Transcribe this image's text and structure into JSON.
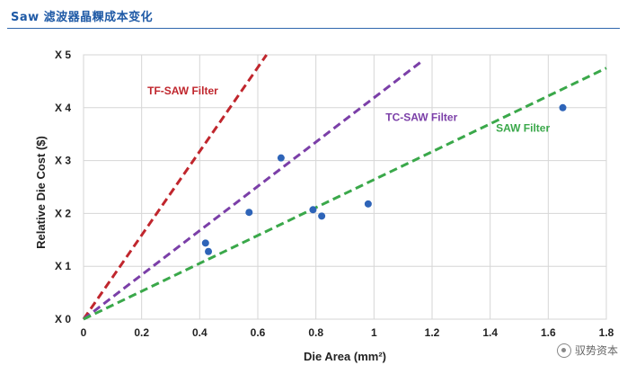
{
  "header": {
    "title": "Saw 滤波器晶粿成本变化"
  },
  "watermark": {
    "icon": "wechat-channel-icon",
    "text": "驭势资本"
  },
  "chart_data": {
    "type": "scatter",
    "xlabel": "Die Area (mm²)",
    "ylabel": "Relative Die Cost ($)",
    "xlim": [
      0,
      1.8
    ],
    "ylim": [
      0,
      5
    ],
    "x_ticks": [
      "0",
      "0.2",
      "0.4",
      "0.6",
      "0.8",
      "1",
      "1.2",
      "1.4",
      "1.6",
      "1.8"
    ],
    "y_ticks": [
      "X 0",
      "X 1",
      "X 2",
      "X 3",
      "X 4",
      "X 5"
    ],
    "grid": true,
    "points": [
      {
        "x": 0.42,
        "y": 1.44
      },
      {
        "x": 0.43,
        "y": 1.28
      },
      {
        "x": 0.57,
        "y": 2.02
      },
      {
        "x": 0.68,
        "y": 3.05
      },
      {
        "x": 0.79,
        "y": 2.07
      },
      {
        "x": 0.82,
        "y": 1.95
      },
      {
        "x": 0.98,
        "y": 2.18
      },
      {
        "x": 1.65,
        "y": 4.0
      }
    ],
    "point_color": "#2e64b8",
    "trend_lines": [
      {
        "name": "TF-SAW Filter",
        "x": [
          0,
          0.63
        ],
        "y": [
          0,
          5.0
        ],
        "color": "#c0262d"
      },
      {
        "name": "TC-SAW Filter",
        "x": [
          0,
          1.17
        ],
        "y": [
          0,
          4.9
        ],
        "color": "#7b3fa8"
      },
      {
        "name": "SAW Filter",
        "x": [
          0,
          1.8
        ],
        "y": [
          0,
          4.75
        ],
        "color": "#3aa84a"
      }
    ]
  }
}
